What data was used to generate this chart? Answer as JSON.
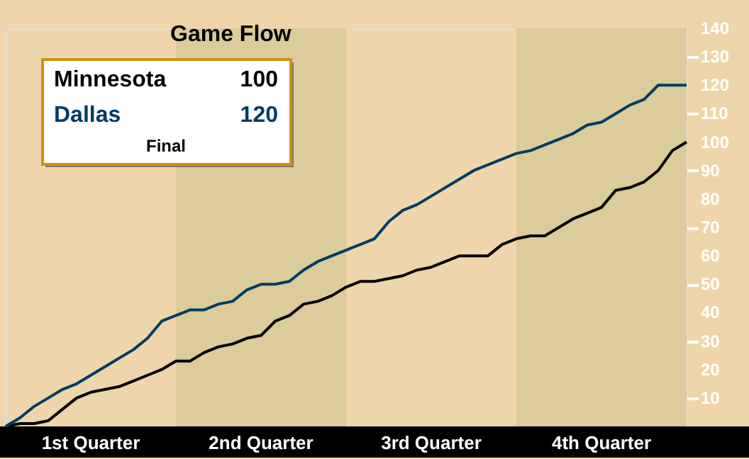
{
  "chart_data": {
    "type": "line",
    "title": "Game Flow",
    "categories": [
      null,
      null,
      null,
      null,
      null,
      null,
      null,
      null,
      null,
      null,
      null,
      null,
      null,
      null,
      null,
      null,
      null,
      null,
      null,
      null,
      null,
      null,
      null,
      null,
      null,
      null,
      null,
      null,
      null,
      null,
      null,
      null,
      null,
      null,
      null,
      null,
      null,
      null,
      null,
      null,
      null,
      null,
      null,
      null,
      null,
      null,
      null,
      null,
      null
    ],
    "series": [
      {
        "name": "Minnesota",
        "color": "#000000",
        "values": [
          0,
          1,
          1,
          2,
          6,
          10,
          12,
          13,
          14,
          16,
          18,
          20,
          23,
          23,
          26,
          28,
          29,
          31,
          32,
          37,
          39,
          43,
          44,
          46,
          49,
          51,
          51,
          52,
          53,
          55,
          56,
          58,
          60,
          60,
          60,
          64,
          66,
          67,
          67,
          70,
          73,
          75,
          77,
          83,
          84,
          86,
          90,
          97,
          100
        ]
      },
      {
        "name": "Dallas",
        "color": "#003c64",
        "values": [
          0,
          3,
          7,
          10,
          13,
          15,
          18,
          21,
          24,
          27,
          31,
          37,
          39,
          41,
          41,
          43,
          44,
          48,
          50,
          50,
          51,
          55,
          58,
          60,
          62,
          64,
          66,
          72,
          76,
          78,
          81,
          84,
          87,
          90,
          92,
          94,
          96,
          97,
          99,
          101,
          103,
          106,
          107,
          110,
          113,
          115,
          120,
          120,
          120
        ]
      }
    ],
    "ylim": [
      0,
      140
    ],
    "yticks": [
      10,
      20,
      30,
      40,
      50,
      60,
      70,
      80,
      90,
      100,
      110,
      120,
      130,
      140
    ],
    "tick_labels": "y",
    "annotations": [
      "100",
      "120",
      "Final",
      "1st Quarter",
      "2nd Quarter",
      "3rd Quarter",
      "4th Quarter"
    ],
    "grid": false,
    "line_style": "solid"
  }
}
